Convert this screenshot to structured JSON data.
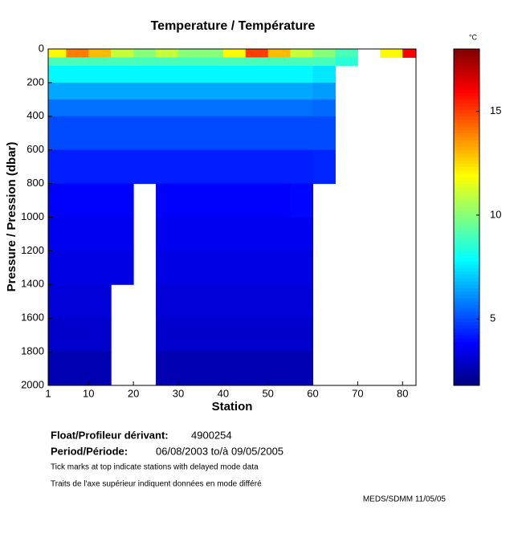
{
  "chart_data": {
    "type": "heatmap",
    "title": "Temperature / Température",
    "x_label": "Station",
    "y_label": "Pressure / Pression (dbar)",
    "colorbar_label": "°C",
    "xlim": [
      1,
      83
    ],
    "xticks": [
      1,
      10,
      20,
      30,
      40,
      50,
      60,
      70,
      80
    ],
    "ylim": [
      0,
      2000
    ],
    "y_reversed": true,
    "yticks": [
      0,
      200,
      400,
      600,
      800,
      1000,
      1200,
      1400,
      1600,
      1800,
      2000
    ],
    "zlim": [
      1.8,
      18
    ],
    "colorbar_ticks": [
      5,
      10,
      15
    ],
    "colormap": "jet",
    "x_edges": [
      1,
      5,
      10,
      15,
      20,
      25,
      30,
      35,
      40,
      45,
      50,
      55,
      60,
      65,
      70,
      75,
      80,
      83
    ],
    "y_edges": [
      0,
      50,
      100,
      200,
      300,
      400,
      600,
      800,
      1000,
      1200,
      1400,
      1600,
      1800,
      2000
    ],
    "values": [
      [
        12,
        14,
        13,
        11,
        10,
        11,
        10,
        10,
        12,
        15,
        13,
        11,
        10,
        9,
        null,
        12,
        16
      ],
      [
        9,
        9,
        9,
        9,
        9,
        9,
        9,
        9,
        9,
        9,
        9,
        9,
        9,
        8.5,
        null,
        null,
        null
      ],
      [
        7.8,
        7.8,
        7.8,
        7.8,
        7.8,
        7.8,
        7.8,
        7.8,
        7.8,
        7.8,
        7.8,
        7.8,
        7.5,
        null,
        null,
        null,
        null
      ],
      [
        6.5,
        6.5,
        6.5,
        6.5,
        6.5,
        6.5,
        6.5,
        6.5,
        6.5,
        6.5,
        6.5,
        6.5,
        6.3,
        null,
        null,
        null,
        null
      ],
      [
        5.6,
        5.6,
        5.6,
        5.6,
        5.6,
        5.6,
        5.6,
        5.6,
        5.6,
        5.6,
        5.6,
        5.6,
        5.5,
        null,
        null,
        null,
        null
      ],
      [
        5,
        5,
        5,
        5,
        5,
        5,
        5,
        5,
        5,
        5,
        5,
        5,
        5,
        null,
        null,
        null,
        null
      ],
      [
        4.3,
        4.3,
        4.3,
        4.3,
        4.3,
        4.3,
        4.3,
        4.3,
        4.3,
        4.3,
        4.3,
        4.3,
        4.4,
        null,
        null,
        null,
        null
      ],
      [
        3.8,
        3.8,
        3.8,
        3.8,
        null,
        3.8,
        3.8,
        3.8,
        3.8,
        3.8,
        3.8,
        3.9,
        null,
        null,
        null,
        null,
        null
      ],
      [
        3.6,
        3.6,
        3.6,
        3.6,
        null,
        3.6,
        3.6,
        3.6,
        3.6,
        3.6,
        3.6,
        3.6,
        null,
        null,
        null,
        null,
        null
      ],
      [
        3.4,
        3.4,
        3.4,
        3.4,
        null,
        3.4,
        3.4,
        3.4,
        3.4,
        3.4,
        3.4,
        3.4,
        null,
        null,
        null,
        null,
        null
      ],
      [
        3.2,
        3.2,
        3.2,
        null,
        null,
        3.2,
        3.2,
        3.2,
        3.2,
        3.2,
        3.2,
        3.2,
        null,
        null,
        null,
        null,
        null
      ],
      [
        3,
        3,
        3,
        null,
        null,
        3,
        3,
        3,
        3,
        3,
        3,
        3,
        null,
        null,
        null,
        null,
        null
      ],
      [
        2.6,
        2.6,
        2.6,
        null,
        null,
        2.6,
        2.6,
        2.6,
        2.6,
        2.6,
        2.6,
        2.6,
        null,
        null,
        null,
        null,
        null
      ]
    ]
  },
  "footer": {
    "float_label": "Float/Profileur dérivant:",
    "float_id": "4900254",
    "period_label": "Period/Période:",
    "period": "06/08/2003  to/à  09/05/2005",
    "note_en": "Tick marks at top indicate stations with delayed mode data",
    "note_fr": "Traits de l'axe supérieur indiquent données en mode différé",
    "credit": "MEDS/SDMM  11/05/05"
  }
}
